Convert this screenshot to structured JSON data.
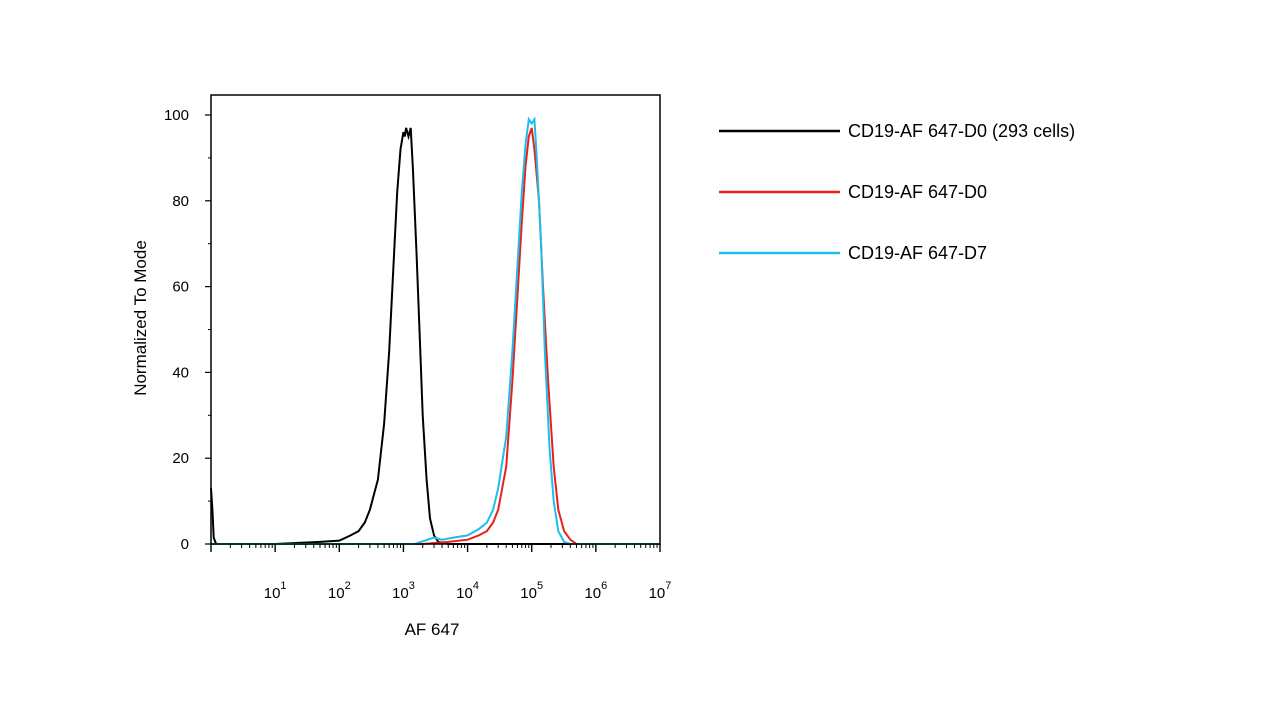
{
  "chart_data": {
    "type": "line",
    "xlabel": "AF 647",
    "ylabel": "Normalized To Mode",
    "x_scale": "log",
    "xlim": [
      1,
      10000000
    ],
    "ylim": [
      0,
      100
    ],
    "y_ticks": [
      0,
      20,
      40,
      60,
      80,
      100
    ],
    "x_ticks": [
      {
        "base": "10",
        "exp": "1",
        "value": 10
      },
      {
        "base": "10",
        "exp": "2",
        "value": 100
      },
      {
        "base": "10",
        "exp": "3",
        "value": 1000
      },
      {
        "base": "10",
        "exp": "4",
        "value": 10000
      },
      {
        "base": "10",
        "exp": "5",
        "value": 100000
      },
      {
        "base": "10",
        "exp": "6",
        "value": 1000000
      },
      {
        "base": "10",
        "exp": "7",
        "value": 10000000
      }
    ],
    "grid": false,
    "legend_position": "right",
    "series": [
      {
        "name": "CD19-AF 647-D0 (293 cells)",
        "color": "#000000",
        "points": [
          [
            1.0,
            13
          ],
          [
            1.05,
            8
          ],
          [
            1.1,
            1.5
          ],
          [
            1.2,
            0
          ],
          [
            10,
            0
          ],
          [
            50,
            0.5
          ],
          [
            100,
            0.8
          ],
          [
            150,
            2
          ],
          [
            200,
            3
          ],
          [
            250,
            5
          ],
          [
            300,
            8
          ],
          [
            400,
            15
          ],
          [
            500,
            28
          ],
          [
            600,
            45
          ],
          [
            700,
            65
          ],
          [
            800,
            82
          ],
          [
            900,
            92
          ],
          [
            1000,
            96
          ],
          [
            1050,
            95
          ],
          [
            1100,
            97
          ],
          [
            1200,
            95
          ],
          [
            1300,
            97
          ],
          [
            1400,
            88
          ],
          [
            1600,
            68
          ],
          [
            1800,
            48
          ],
          [
            2000,
            30
          ],
          [
            2300,
            15
          ],
          [
            2600,
            6
          ],
          [
            3000,
            2
          ],
          [
            3500,
            0.5
          ],
          [
            5000,
            0
          ],
          [
            10000000,
            0
          ]
        ]
      },
      {
        "name": "CD19-AF 647-D0",
        "color": "#e8201c",
        "points": [
          [
            1,
            0
          ],
          [
            2000,
            0
          ],
          [
            5000,
            0.5
          ],
          [
            10000,
            1
          ],
          [
            15000,
            2
          ],
          [
            20000,
            3
          ],
          [
            25000,
            5
          ],
          [
            30000,
            8
          ],
          [
            40000,
            18
          ],
          [
            50000,
            38
          ],
          [
            60000,
            58
          ],
          [
            70000,
            75
          ],
          [
            80000,
            88
          ],
          [
            90000,
            95
          ],
          [
            100000,
            97
          ],
          [
            110000,
            92
          ],
          [
            130000,
            80
          ],
          [
            150000,
            60
          ],
          [
            180000,
            38
          ],
          [
            220000,
            18
          ],
          [
            260000,
            8
          ],
          [
            320000,
            3
          ],
          [
            400000,
            1
          ],
          [
            500000,
            0
          ],
          [
            10000000,
            0
          ]
        ]
      },
      {
        "name": "CD19-AF 647-D7",
        "color": "#1ebeea",
        "points": [
          [
            1,
            0
          ],
          [
            1500,
            0
          ],
          [
            3000,
            1.5
          ],
          [
            4000,
            1
          ],
          [
            6000,
            1.5
          ],
          [
            10000,
            2
          ],
          [
            15000,
            3.5
          ],
          [
            20000,
            5
          ],
          [
            25000,
            8
          ],
          [
            30000,
            13
          ],
          [
            40000,
            25
          ],
          [
            50000,
            45
          ],
          [
            60000,
            65
          ],
          [
            70000,
            82
          ],
          [
            80000,
            93
          ],
          [
            90000,
            99
          ],
          [
            100000,
            98
          ],
          [
            110000,
            99
          ],
          [
            120000,
            90
          ],
          [
            140000,
            70
          ],
          [
            160000,
            45
          ],
          [
            190000,
            22
          ],
          [
            220000,
            10
          ],
          [
            260000,
            3
          ],
          [
            320000,
            0.5
          ],
          [
            400000,
            0
          ],
          [
            10000000,
            0
          ]
        ]
      }
    ]
  }
}
